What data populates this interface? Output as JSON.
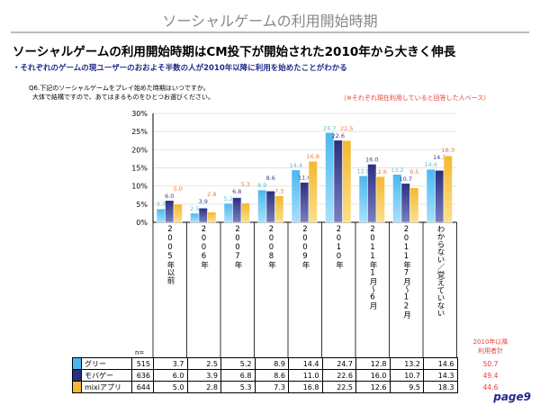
{
  "header": {
    "title": "ソーシャルゲームの利用開始時期"
  },
  "headline": "ソーシャルゲームの利用開始時期はCM投下が開始された2010年から大きく伸長",
  "subheadline": "・それぞれのゲームの現ユーザーのおおよそ半数の人が2010年以降に利用を始めたことがわかる",
  "question": {
    "line1": "Q6.下記のソーシャルゲームをプレイ始めた時期はいつですか。",
    "line2": "大体で結構ですので、あてはまるものをひとつお選びください。"
  },
  "note": "（※それぞれ現在利用していると回答した人ベース）",
  "chart_data": {
    "type": "bar",
    "categories": [
      "2005年以前",
      "2006年",
      "2007年",
      "2008年",
      "2009年",
      "2010年",
      "2011年1月～6月",
      "2011年7月～12月",
      "わからない／覚えていない"
    ],
    "ylim": [
      0,
      30
    ],
    "yticks": [
      "0%",
      "5%",
      "10%",
      "15%",
      "20%",
      "25%",
      "30%"
    ],
    "grid": true,
    "series": [
      {
        "name": "グリー",
        "n": "515",
        "color": "#4ab8f0",
        "label_color": "#5bbfcf",
        "values": [
          3.7,
          2.5,
          5.2,
          8.9,
          14.4,
          24.7,
          12.8,
          13.2,
          14.6
        ],
        "total_since_2010": "50.7"
      },
      {
        "name": "モバゲー",
        "n": "636",
        "color": "#2a2f80",
        "label_color": "#3a4090",
        "values": [
          6.0,
          3.9,
          6.8,
          8.6,
          11.0,
          22.6,
          16.0,
          10.7,
          14.3
        ],
        "total_since_2010": "49.4"
      },
      {
        "name": "mixiアプリ",
        "n": "644",
        "color": "#f5b730",
        "label_color": "#f07a3a",
        "values": [
          5.0,
          2.8,
          5.3,
          7.3,
          16.8,
          22.5,
          12.6,
          9.5,
          18.3
        ],
        "total_since_2010": "44.6"
      }
    ]
  },
  "table": {
    "n_label": "n=",
    "total_label": "2010年以降\n利用者計"
  },
  "page": "page9"
}
